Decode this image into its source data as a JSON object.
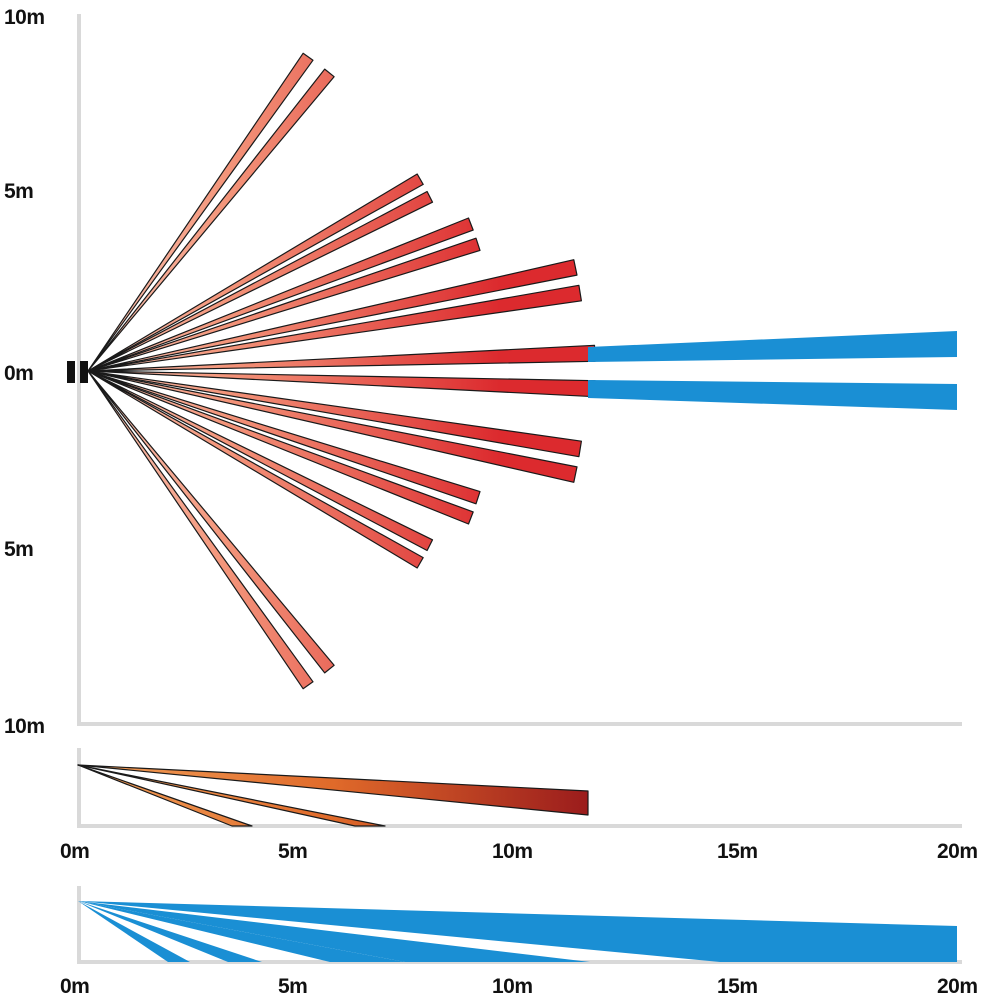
{
  "top_view": {
    "y_labels": [
      "10m",
      "5m",
      "0m",
      "5m",
      "10m"
    ],
    "red_beam_angles_deg": [
      55,
      51,
      30,
      27,
      21,
      18,
      12,
      9,
      2,
      -2,
      -9,
      -12,
      -18,
      -21,
      -27,
      -30,
      -51,
      -55
    ],
    "red_beam_lengths_m": [
      8.7,
      8.7,
      8.7,
      8.7,
      9.3,
      9.3,
      11.3,
      11.3,
      11.5,
      11.5,
      11.3,
      11.3,
      9.3,
      9.3,
      8.7,
      8.7,
      8.7,
      8.7
    ],
    "blue_long_range_m": [
      11.5,
      20
    ]
  },
  "side_view_red": {
    "x_labels": [
      "0m",
      "5m",
      "10m",
      "15m",
      "20m"
    ],
    "beam_reach_m": [
      11.5,
      7,
      4
    ]
  },
  "side_view_blue": {
    "x_labels": [
      "0m",
      "5m",
      "10m",
      "15m",
      "20m"
    ],
    "beam_reach_m": [
      20,
      11.5,
      7.5,
      4,
      2.5
    ]
  },
  "colors": {
    "red_light": "#fbd3c2",
    "red_mid": "#ef7a5e",
    "red_dark": "#d9252c",
    "orange_side": "#e8702a",
    "red_side_dark": "#9b1c1c",
    "blue": "#1a8fd4",
    "axis": "#d9d9d9",
    "sensor": "#111111"
  }
}
